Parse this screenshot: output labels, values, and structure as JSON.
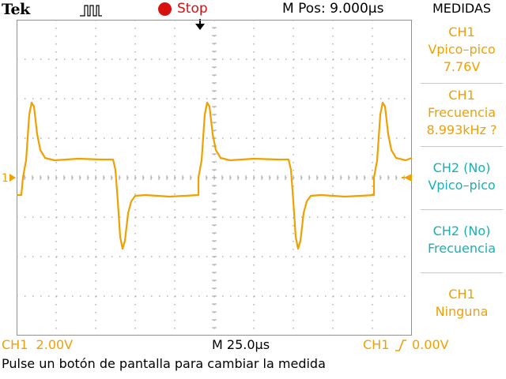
{
  "header": {
    "brand": "Tek",
    "acquisition_icon": "pulse-icon",
    "run_state": "Stop",
    "horizontal_position": "M Pos: 9.000µs"
  },
  "menu": {
    "title": "MEDIDAS",
    "items": [
      {
        "lines": [
          "CH1",
          "Vpico–pico",
          "7.76V"
        ]
      },
      {
        "lines": [
          "CH1",
          "Frecuencia",
          "8.993kHz ?"
        ]
      },
      {
        "lines": [
          "CH2 (No)",
          "Vpico–pico"
        ]
      },
      {
        "lines": [
          "CH2 (No)",
          "Frecuencia"
        ]
      },
      {
        "lines": [
          "CH1",
          "Ninguna"
        ]
      }
    ]
  },
  "footer": {
    "ch1_scale": "CH1  2.00V",
    "timebase": "M 25.0µs",
    "trigger_source": "CH1",
    "trigger_level": "0.00V",
    "hint": "Pulse un botón de pantalla para cambiar la medida"
  },
  "display": {
    "ch1_ground_marker": "1",
    "colors": {
      "ch1": "#f0a000",
      "ch2": "#18b0b8",
      "stop": "#d81010",
      "grid": "#a0a0a0"
    }
  }
}
